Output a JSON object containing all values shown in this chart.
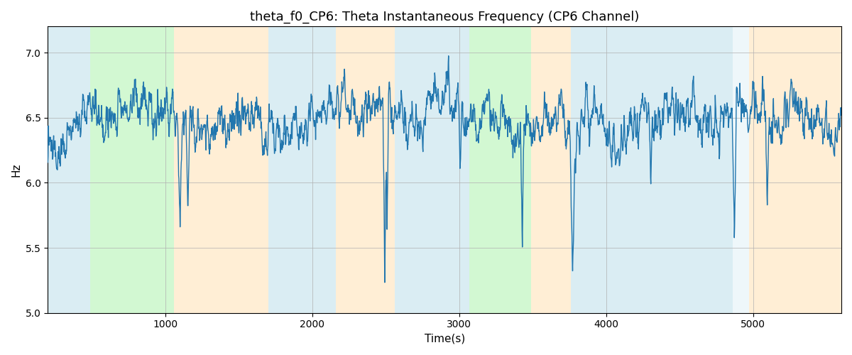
{
  "title": "theta_f0_CP6: Theta Instantaneous Frequency (CP6 Channel)",
  "xlabel": "Time(s)",
  "ylabel": "Hz",
  "ylim": [
    5.0,
    7.2
  ],
  "xlim": [
    200,
    5600
  ],
  "line_color": "#2176ae",
  "line_width": 1.0,
  "bg_color": "#ffffff",
  "grid_color": "#b0b0b0",
  "title_fontsize": 13,
  "label_fontsize": 11,
  "seed": 137,
  "background_bands": [
    {
      "xmin": 200,
      "xmax": 490,
      "color": "#add8e6",
      "alpha": 0.45
    },
    {
      "xmin": 490,
      "xmax": 1060,
      "color": "#90ee90",
      "alpha": 0.4
    },
    {
      "xmin": 1060,
      "xmax": 1700,
      "color": "#ffdead",
      "alpha": 0.5
    },
    {
      "xmin": 1700,
      "xmax": 2160,
      "color": "#add8e6",
      "alpha": 0.45
    },
    {
      "xmin": 2160,
      "xmax": 2560,
      "color": "#ffdead",
      "alpha": 0.5
    },
    {
      "xmin": 2560,
      "xmax": 3070,
      "color": "#add8e6",
      "alpha": 0.45
    },
    {
      "xmin": 3070,
      "xmax": 3490,
      "color": "#90ee90",
      "alpha": 0.4
    },
    {
      "xmin": 3490,
      "xmax": 3760,
      "color": "#ffdead",
      "alpha": 0.5
    },
    {
      "xmin": 3760,
      "xmax": 4860,
      "color": "#add8e6",
      "alpha": 0.45
    },
    {
      "xmin": 4860,
      "xmax": 4970,
      "color": "#add8e6",
      "alpha": 0.2
    },
    {
      "xmin": 4970,
      "xmax": 5600,
      "color": "#ffdead",
      "alpha": 0.5
    }
  ],
  "xticks": [
    1000,
    2000,
    3000,
    4000,
    5000
  ],
  "yticks": [
    5.0,
    5.5,
    6.0,
    6.5,
    7.0
  ]
}
